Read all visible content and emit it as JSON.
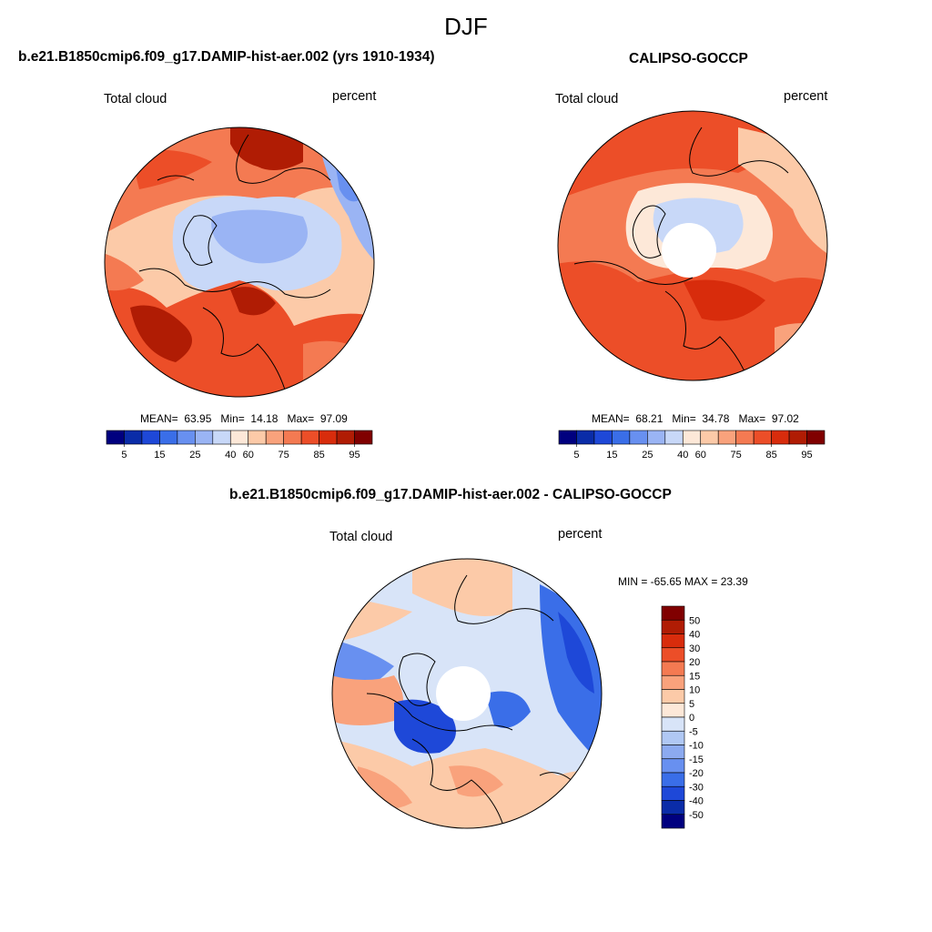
{
  "figure": {
    "season": "DJF"
  },
  "panels": [
    {
      "title": "b.e21.B1850cmip6.f09_g17.DAMIP-hist-aer.002 (yrs 1910-1934)",
      "left_label": "Total cloud",
      "right_label": "percent",
      "stats": {
        "mean_label": "MEAN=",
        "mean": "63.95",
        "min_label": "Min=",
        "min": "14.18",
        "max_label": "Max=",
        "max": "97.09"
      }
    },
    {
      "title": "CALIPSO-GOCCP",
      "left_label": "Total cloud",
      "right_label": "percent",
      "stats": {
        "mean_label": "MEAN=",
        "mean": "68.21",
        "min_label": "Min=",
        "min": "34.78",
        "max_label": "Max=",
        "max": "97.02"
      }
    },
    {
      "title": "b.e21.B1850cmip6.f09_g17.DAMIP-hist-aer.002 - CALIPSO-GOCCP",
      "left_label": "Total cloud",
      "right_label": "percent",
      "stats_text": "MIN = -65.65 MAX =  23.39"
    }
  ],
  "colorbars": {
    "abs_ticks": [
      "5",
      "15",
      "25",
      "40",
      "60",
      "75",
      "85",
      "95"
    ],
    "abs_colors": [
      "#00007f",
      "#0a2ca8",
      "#1e48d8",
      "#3a6ee8",
      "#6890f0",
      "#9ab4f4",
      "#c8d8f8",
      "#fde8d8",
      "#fccaa8",
      "#f9a27c",
      "#f47a52",
      "#ec4e28",
      "#d82c0c",
      "#b01c04",
      "#800000"
    ],
    "diff_ticks": [
      "50",
      "40",
      "30",
      "20",
      "15",
      "10",
      "5",
      "0",
      "-5",
      "-10",
      "-15",
      "-20",
      "-30",
      "-40",
      "-50"
    ],
    "diff_colors": [
      "#800000",
      "#b01c04",
      "#d82c0c",
      "#ec4e28",
      "#f47a52",
      "#f9a27c",
      "#fccaa8",
      "#fde8d8",
      "#d8e4f8",
      "#b0c8f4",
      "#8caaf0",
      "#6890f0",
      "#3a6ee8",
      "#1e48d8",
      "#0a2ca8",
      "#00007f"
    ]
  },
  "map_colors": {
    "land_outline": "#000000",
    "missing": "#ffffff"
  }
}
